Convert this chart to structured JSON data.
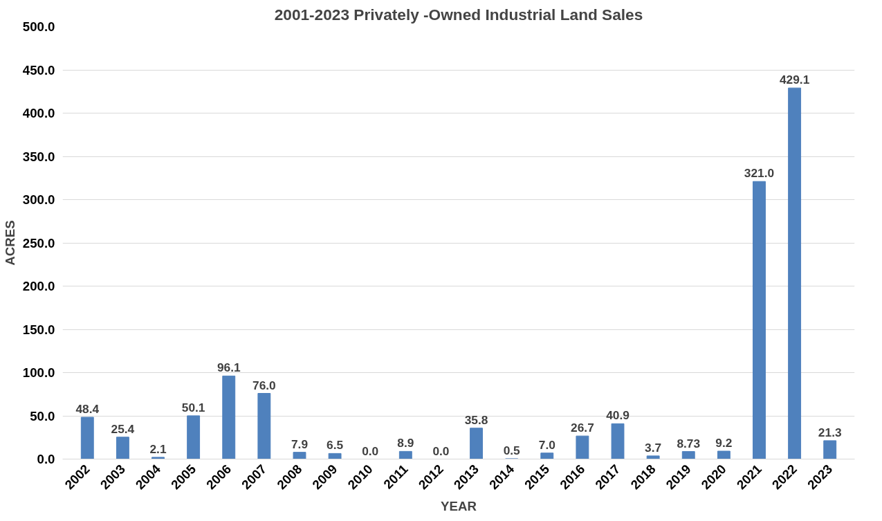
{
  "chart_data": {
    "type": "bar",
    "title": "2001-2023 Privately -Owned Industrial Land Sales",
    "xlabel": "YEAR",
    "ylabel": "ACRES",
    "categories": [
      "2002",
      "2003",
      "2004",
      "2005",
      "2006",
      "2007",
      "2008",
      "2009",
      "2010",
      "2011",
      "2012",
      "2013",
      "2014",
      "2015",
      "2016",
      "2017",
      "2018",
      "2019",
      "2020",
      "2021",
      "2022",
      "2023"
    ],
    "values": [
      48.4,
      25.4,
      2.1,
      50.1,
      96.1,
      76.0,
      7.9,
      6.5,
      0.0,
      8.9,
      0.0,
      35.8,
      0.5,
      7.0,
      26.7,
      40.9,
      3.7,
      8.73,
      9.2,
      321.0,
      429.1,
      21.3
    ],
    "value_labels": [
      "48.4",
      "25.4",
      "2.1",
      "50.1",
      "96.1",
      "76.0",
      "7.9",
      "6.5",
      "0.0",
      "8.9",
      "0.0",
      "35.8",
      "0.5",
      "7.0",
      "26.7",
      "40.9",
      "3.7",
      "8.73",
      "9.2",
      "321.0",
      "429.1",
      "21.3"
    ],
    "color": "#4f81bd",
    "ylim": [
      0,
      500
    ],
    "yticks": [
      {
        "value": 0,
        "label": "0.0"
      },
      {
        "value": 50,
        "label": "50.0"
      },
      {
        "value": 100,
        "label": "100.0"
      },
      {
        "value": 150,
        "label": "150.0"
      },
      {
        "value": 200,
        "label": "200.0"
      },
      {
        "value": 250,
        "label": "250.0"
      },
      {
        "value": 300,
        "label": "300.0"
      },
      {
        "value": 350,
        "label": "350.0"
      },
      {
        "value": 400,
        "label": "400.0"
      },
      {
        "value": 450,
        "label": "450.0"
      },
      {
        "value": 500,
        "label": "500.0"
      }
    ],
    "grid": "y"
  }
}
